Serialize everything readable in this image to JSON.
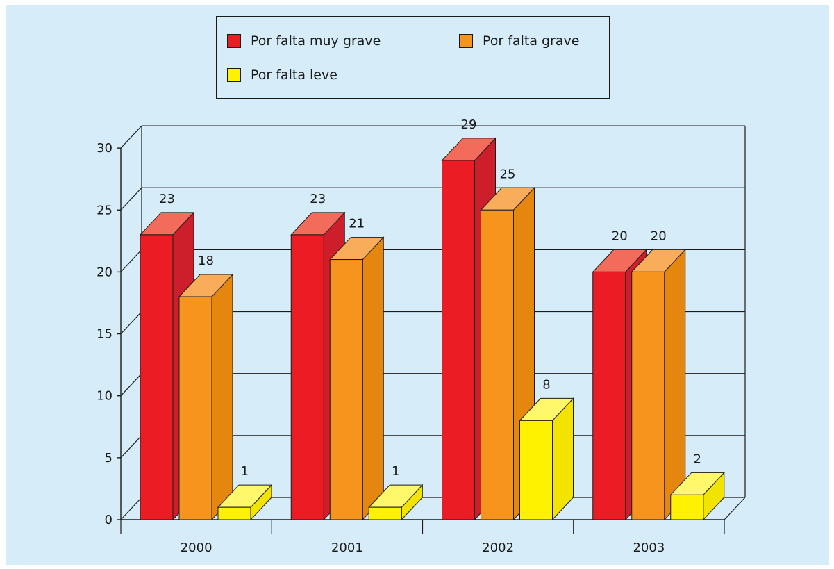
{
  "chart_data": {
    "type": "bar",
    "title": "",
    "xlabel": "",
    "ylabel": "",
    "categories": [
      "2000",
      "2001",
      "2002",
      "2003"
    ],
    "series": [
      {
        "name": "Por falta muy grave",
        "values": [
          23,
          23,
          29,
          20
        ]
      },
      {
        "name": "Por falta grave",
        "values": [
          18,
          21,
          25,
          20
        ]
      },
      {
        "name": "Por falta leve",
        "values": [
          1,
          1,
          8,
          2
        ]
      }
    ],
    "ylim": [
      0,
      30
    ],
    "yticks": [
      "0",
      "5",
      "10",
      "15",
      "20",
      "25",
      "30"
    ],
    "grid": true,
    "legend_position": "top",
    "render_3d": true
  },
  "colors": {
    "background": "#d6ecf9",
    "axis": "#1a1a1a",
    "series_front": [
      "#ec1c24",
      "#f7941d",
      "#fff200"
    ],
    "series_top": [
      "#f26b5b",
      "#f9ad5b",
      "#fff86a"
    ],
    "series_side": [
      "#cd1f2b",
      "#e5870f",
      "#f2e400"
    ]
  }
}
